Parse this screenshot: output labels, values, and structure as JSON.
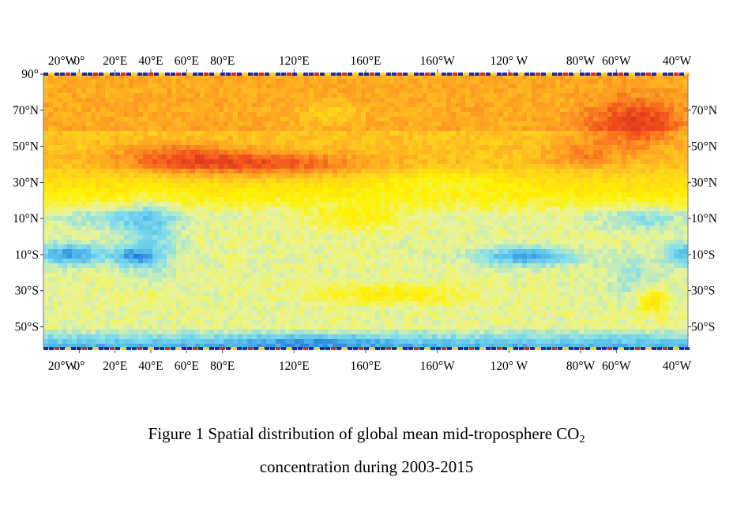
{
  "map": {
    "type": "heatmap",
    "variable": "mid-troposphere CO2 concentration",
    "period": "2003-2015",
    "lon_ticks": [
      "20°W",
      "0°",
      "20°E",
      "40°E",
      "60°E",
      "80°E",
      "120°E",
      "160°E",
      "160°W",
      "120° W",
      "80°W",
      "60°W",
      "40°W"
    ],
    "lat_ticks_left": [
      "90°",
      "70°N",
      "50°N",
      "30°N",
      "10°N",
      "10°S",
      "30°S",
      "50°S"
    ],
    "lat_ticks_right": [
      "70°N",
      "50°N",
      "30°N",
      "10°N",
      "10°S",
      "30°S",
      "50°S"
    ],
    "colormap": [
      "#1f6fd6",
      "#4fb8ea",
      "#86e0ec",
      "#e9f39a",
      "#fff200",
      "#ffd21e",
      "#ff9f22",
      "#f2531d",
      "#d82a1e"
    ],
    "chart_data": {
      "type": "heatmap",
      "legend": "none",
      "pattern": "high values across the northern mid-to-high latitudes (~25°N–90°N), strongest over Eurasia (20°E–140°E, 30°N–50°N) and North America; lowest values near 10°S over the Atlantic/Africa and the eastern Pacific, and along the southern edge (~60°S)"
    }
  },
  "caption": {
    "line1_main": "Figure 1  Spatial distribution of global mean mid-troposphere CO",
    "line1_sub": "2",
    "line2": "concentration during 2003-2015"
  }
}
